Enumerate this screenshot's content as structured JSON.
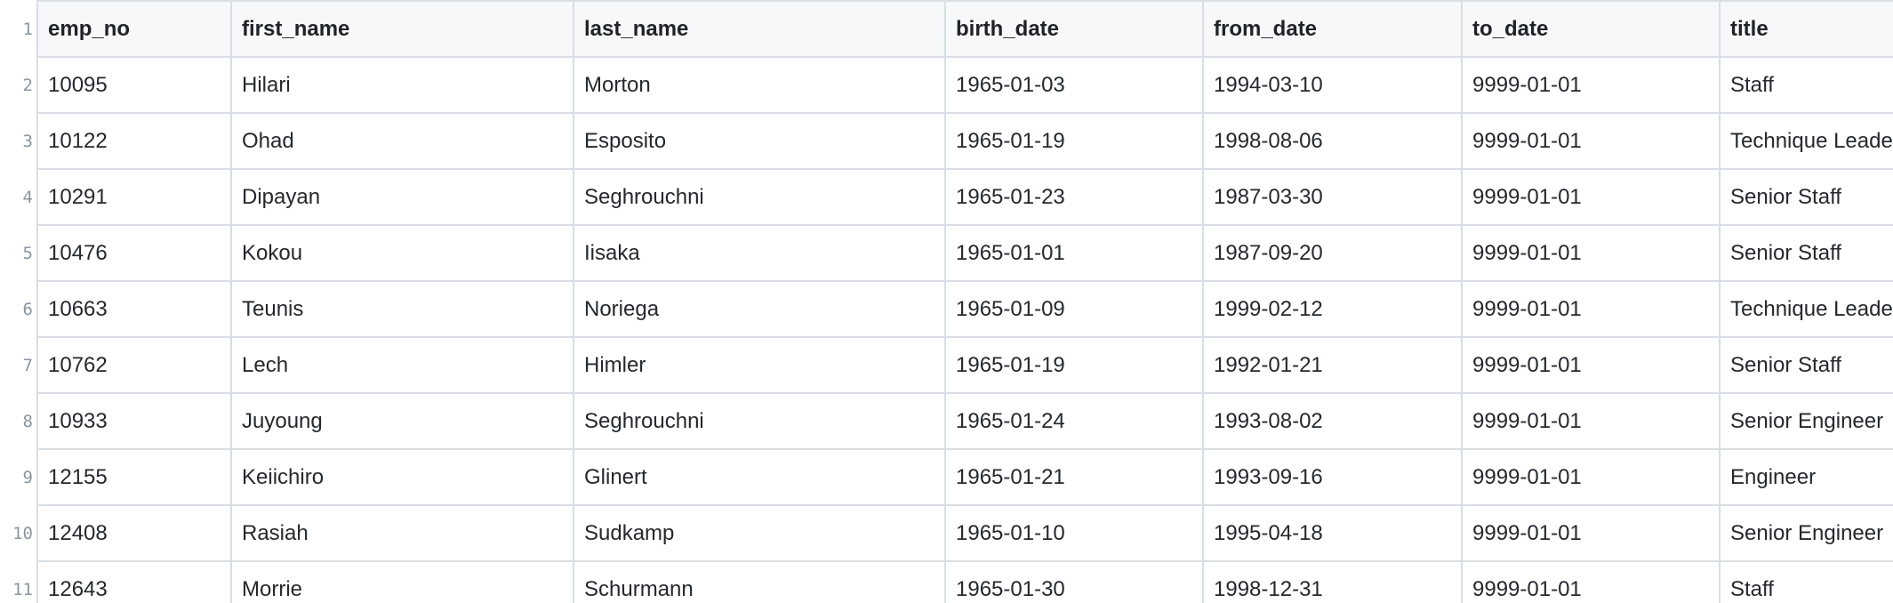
{
  "columns": [
    "emp_no",
    "first_name",
    "last_name",
    "birth_date",
    "from_date",
    "to_date",
    "title"
  ],
  "rows": [
    {
      "line": "2",
      "cells": [
        "10095",
        "Hilari",
        "Morton",
        "1965-01-03",
        "1994-03-10",
        "9999-01-01",
        "Staff"
      ]
    },
    {
      "line": "3",
      "cells": [
        "10122",
        "Ohad",
        "Esposito",
        "1965-01-19",
        "1998-08-06",
        "9999-01-01",
        "Technique Leader"
      ]
    },
    {
      "line": "4",
      "cells": [
        "10291",
        "Dipayan",
        "Seghrouchni",
        "1965-01-23",
        "1987-03-30",
        "9999-01-01",
        "Senior Staff"
      ]
    },
    {
      "line": "5",
      "cells": [
        "10476",
        "Kokou",
        "Iisaka",
        "1965-01-01",
        "1987-09-20",
        "9999-01-01",
        "Senior Staff"
      ]
    },
    {
      "line": "6",
      "cells": [
        "10663",
        "Teunis",
        "Noriega",
        "1965-01-09",
        "1999-02-12",
        "9999-01-01",
        "Technique Leader"
      ]
    },
    {
      "line": "7",
      "cells": [
        "10762",
        "Lech",
        "Himler",
        "1965-01-19",
        "1992-01-21",
        "9999-01-01",
        "Senior Staff"
      ]
    },
    {
      "line": "8",
      "cells": [
        "10933",
        "Juyoung",
        "Seghrouchni",
        "1965-01-24",
        "1993-08-02",
        "9999-01-01",
        "Senior Engineer"
      ]
    },
    {
      "line": "9",
      "cells": [
        "12155",
        "Keiichiro",
        "Glinert",
        "1965-01-21",
        "1993-09-16",
        "9999-01-01",
        "Engineer"
      ]
    },
    {
      "line": "10",
      "cells": [
        "12408",
        "Rasiah",
        "Sudkamp",
        "1965-01-10",
        "1995-04-18",
        "9999-01-01",
        "Senior Engineer"
      ]
    },
    {
      "line": "11",
      "cells": [
        "12643",
        "Morrie",
        "Schurmann",
        "1965-01-30",
        "1998-12-31",
        "9999-01-01",
        "Staff"
      ]
    }
  ],
  "header_line": "1"
}
